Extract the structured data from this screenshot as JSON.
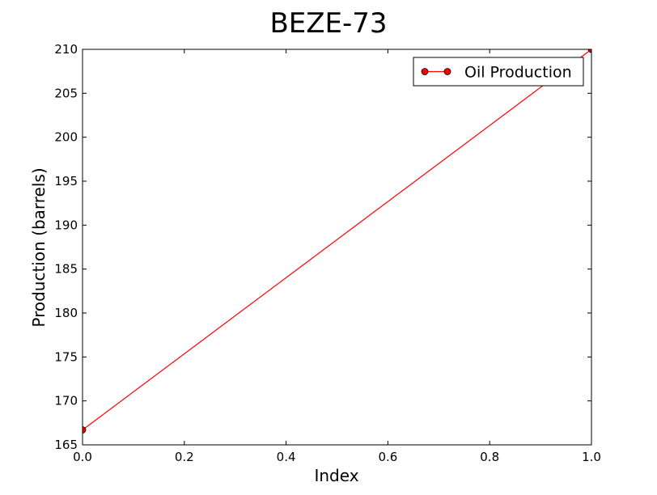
{
  "chart_data": {
    "type": "line",
    "title": "BEZE-73",
    "xlabel": "Index",
    "ylabel": "Production (barrels)",
    "xlim": [
      0.0,
      1.0
    ],
    "ylim": [
      165,
      210
    ],
    "xticks": [
      0.0,
      0.2,
      0.4,
      0.6,
      0.8,
      1.0
    ],
    "xtick_labels": [
      "0.0",
      "0.2",
      "0.4",
      "0.6",
      "0.8",
      "1.0"
    ],
    "yticks": [
      165,
      170,
      175,
      180,
      185,
      190,
      195,
      200,
      205,
      210
    ],
    "ytick_labels": [
      "165",
      "170",
      "175",
      "180",
      "185",
      "190",
      "195",
      "200",
      "205",
      "210"
    ],
    "grid": false,
    "legend_position": "top-right",
    "series": [
      {
        "name": "Oil Production",
        "color": "#ff0000",
        "marker": "circle",
        "x": [
          0,
          1
        ],
        "y": [
          166.7,
          210
        ]
      }
    ]
  }
}
